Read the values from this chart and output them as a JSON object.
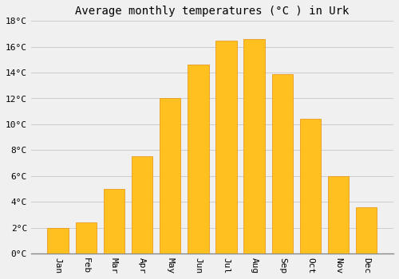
{
  "title": "Average monthly temperatures (°C ) in Urk",
  "months": [
    "Jan",
    "Feb",
    "Mar",
    "Apr",
    "May",
    "Jun",
    "Jul",
    "Aug",
    "Sep",
    "Oct",
    "Nov",
    "Dec"
  ],
  "values": [
    2.0,
    2.4,
    5.0,
    7.5,
    12.0,
    14.6,
    16.5,
    16.6,
    13.9,
    10.4,
    6.0,
    3.6
  ],
  "bar_color": "#FFC020",
  "bar_edge_color": "#E8900A",
  "background_color": "#F0F0F0",
  "grid_color": "#CCCCCC",
  "ylim": [
    0,
    18
  ],
  "yticks": [
    0,
    2,
    4,
    6,
    8,
    10,
    12,
    14,
    16,
    18
  ],
  "title_fontsize": 10,
  "tick_fontsize": 8,
  "font_family": "monospace",
  "bar_width": 0.75,
  "label_rotation": 270
}
